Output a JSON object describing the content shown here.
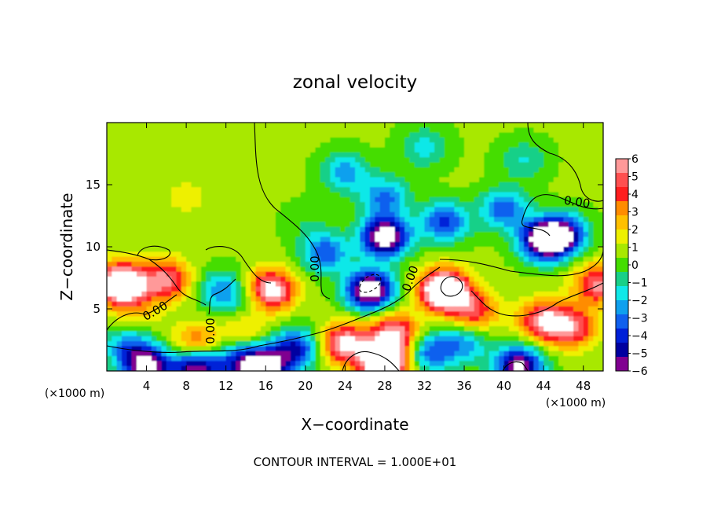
{
  "chart_data": {
    "type": "heatmap",
    "title": "zonal velocity",
    "xlabel": "X−coordinate",
    "ylabel": "Z−coordinate",
    "x_unit_left": "(×1000 m)",
    "x_unit_right": "(×1000 m)",
    "footer": "CONTOUR INTERVAL = 1.000E+01",
    "xlim": [
      0,
      50
    ],
    "ylim": [
      0,
      20
    ],
    "x_ticks": [
      4,
      8,
      12,
      16,
      20,
      24,
      28,
      32,
      36,
      40,
      44,
      48
    ],
    "y_ticks": [
      5,
      10,
      15
    ],
    "contour_label": "0.00",
    "colorbar": {
      "ticks": [
        6,
        5,
        4,
        3,
        2,
        1,
        0,
        -1,
        -2,
        -3,
        -4,
        -5,
        -6
      ],
      "colors": [
        "#ff9999",
        "#ff5050",
        "#ff1e1e",
        "#ff8c00",
        "#ffc000",
        "#eef000",
        "#a8e800",
        "#44dd00",
        "#18d088",
        "#10e8e8",
        "#0fa0ee",
        "#1060ee",
        "#0020d8",
        "#0000a0",
        "#800090"
      ],
      "over_color": "#ffffff"
    },
    "background_level": 0.55,
    "blobs": [
      {
        "x": 24,
        "y": 16,
        "value": -3.0
      },
      {
        "x": 28,
        "y": 14,
        "value": -3.5
      },
      {
        "x": 34,
        "y": 12,
        "value": -4.5
      },
      {
        "x": 40,
        "y": 13,
        "value": -4.0
      },
      {
        "x": 46,
        "y": 11,
        "value": -5.5
      },
      {
        "x": 44,
        "y": 10.5,
        "value": -7.5
      },
      {
        "x": 28,
        "y": 10.8,
        "value": -8.0
      },
      {
        "x": 26.5,
        "y": 6.5,
        "value": -8.0
      },
      {
        "x": 22,
        "y": 9.5,
        "value": -4.0
      },
      {
        "x": 32,
        "y": 18,
        "value": -2.2
      },
      {
        "x": 42,
        "y": 17,
        "value": -1.8
      },
      {
        "x": 1.5,
        "y": 7.0,
        "value": 9.0
      },
      {
        "x": 6,
        "y": 7.3,
        "value": 5.0
      },
      {
        "x": 16.5,
        "y": 6.5,
        "value": 6.5
      },
      {
        "x": 34,
        "y": 6.5,
        "value": 9.5
      },
      {
        "x": 29,
        "y": 3.0,
        "value": 5.5
      },
      {
        "x": 24,
        "y": 2.2,
        "value": 6.0
      },
      {
        "x": 37,
        "y": 4.8,
        "value": 4.0
      },
      {
        "x": 44,
        "y": 4.0,
        "value": 5.5
      },
      {
        "x": 47,
        "y": 3.5,
        "value": 4.5
      },
      {
        "x": 49.5,
        "y": 7.0,
        "value": 5.0
      },
      {
        "x": 9,
        "y": 2.2,
        "value": 3.5
      },
      {
        "x": 14,
        "y": 3.5,
        "value": 1.8
      },
      {
        "x": 32.5,
        "y": 1.5,
        "value": -4.0
      },
      {
        "x": 36,
        "y": 2.2,
        "value": -3.0
      },
      {
        "x": 19,
        "y": 1.8,
        "value": -5.0
      },
      {
        "x": 2,
        "y": 2.0,
        "value": -3.0
      },
      {
        "x": 4,
        "y": 0.4,
        "value": -7.0
      },
      {
        "x": 9,
        "y": 0.3,
        "value": -7.0
      },
      {
        "x": 13.5,
        "y": 0.6,
        "value": -4.5
      },
      {
        "x": 16,
        "y": 0.2,
        "value": -7.0
      },
      {
        "x": 28,
        "y": 0.6,
        "value": 9.0
      },
      {
        "x": 41.5,
        "y": 0.4,
        "value": -7.0
      },
      {
        "x": 11.5,
        "y": 6.5,
        "value": -3.0
      },
      {
        "x": 14,
        "y": 5.5,
        "value": -1.5
      },
      {
        "x": 3,
        "y": 4.8,
        "value": 1.5
      },
      {
        "x": 8,
        "y": 14,
        "value": 1.0
      },
      {
        "x": 20,
        "y": 12,
        "value": -0.8
      }
    ]
  }
}
